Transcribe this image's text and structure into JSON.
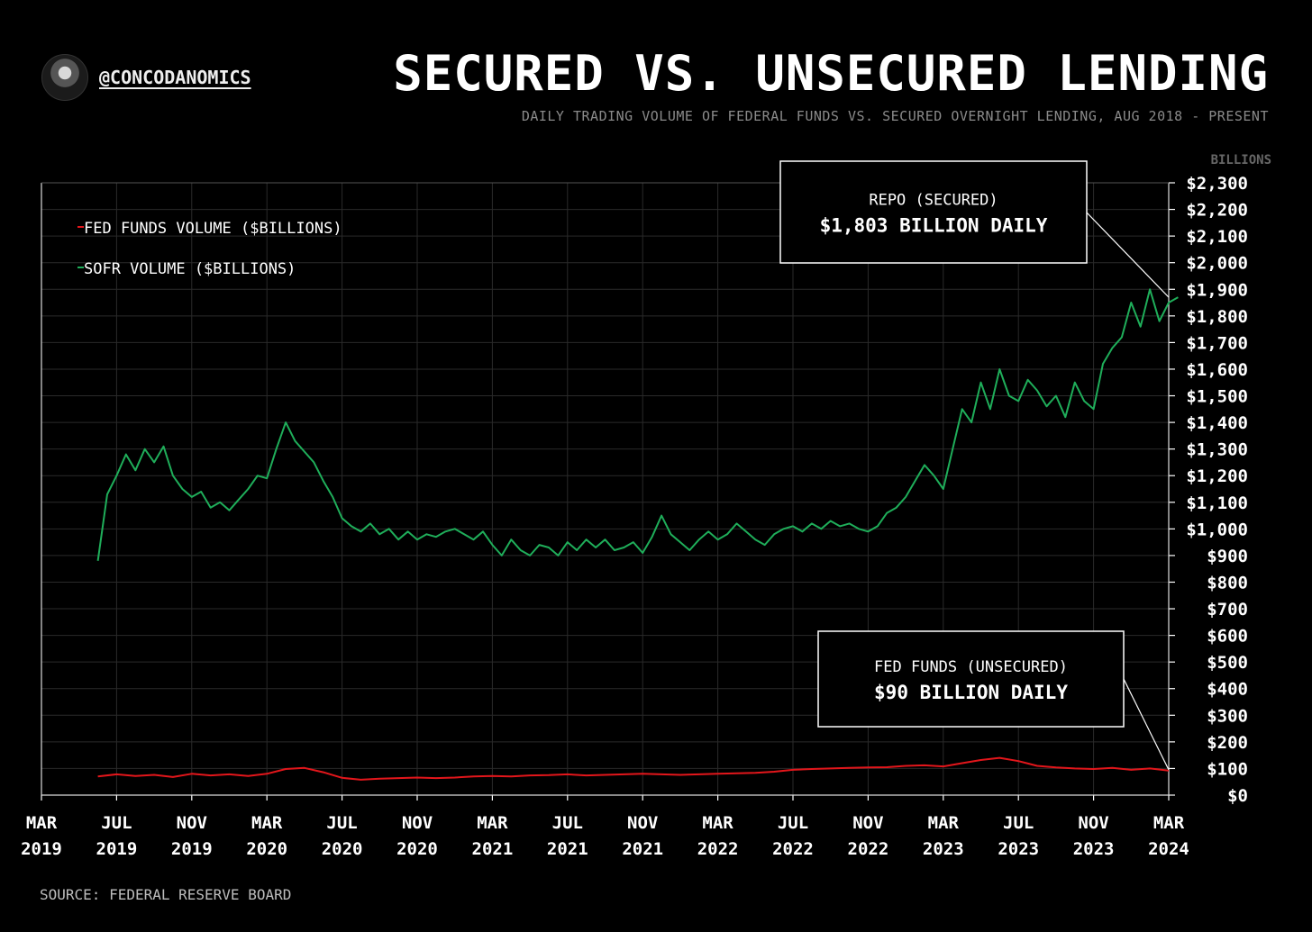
{
  "header": {
    "handle": "@CONCODANOMICS",
    "title": "SECURED VS. UNSECURED LENDING",
    "subtitle": "DAILY TRADING VOLUME OF FEDERAL FUNDS VS. SECURED OVERNIGHT LENDING, AUG 2018 - PRESENT"
  },
  "footer": {
    "source": "SOURCE: FEDERAL RESERVE BOARD"
  },
  "colors": {
    "background": "#000000",
    "grid": "#2a2a2a",
    "fed_funds": "#e3161b",
    "sofr": "#1fae5a",
    "text": "#ffffff"
  },
  "annotations": [
    {
      "label": "REPO (SECURED)",
      "value": "$1,803 BILLION DAILY",
      "target_x": "2024-03",
      "target_y": 1870
    },
    {
      "label": "FED FUNDS (UNSECURED)",
      "value": "$90 BILLION DAILY",
      "target_x": "2024-03",
      "target_y": 95
    }
  ],
  "chart_data": {
    "type": "line",
    "title": "SECURED VS. UNSECURED LENDING",
    "subtitle": "DAILY TRADING VOLUME OF FEDERAL FUNDS VS. SECURED OVERNIGHT LENDING, AUG 2018 - PRESENT",
    "y_unit_label": "BILLIONS",
    "ylim": [
      0,
      2300
    ],
    "y_ticks": [
      0,
      100,
      200,
      300,
      400,
      500,
      600,
      700,
      800,
      900,
      1000,
      1100,
      1200,
      1300,
      1400,
      1500,
      1600,
      1700,
      1800,
      1900,
      2000,
      2100,
      2200,
      2300
    ],
    "y_tick_labels": [
      "$0",
      "$100",
      "$200",
      "$300",
      "$400",
      "$500",
      "$600",
      "$700",
      "$800",
      "$900",
      "$1,000",
      "$1,100",
      "$1,200",
      "$1,300",
      "$1,400",
      "$1,500",
      "$1,600",
      "$1,700",
      "$1,800",
      "$1,900",
      "$2,000",
      "$2,100",
      "$2,200",
      "$2,300"
    ],
    "xlim": [
      "2019-03",
      "2024-03"
    ],
    "x_ticks": [
      "2019-03",
      "2019-07",
      "2019-11",
      "2020-03",
      "2020-07",
      "2020-11",
      "2021-03",
      "2021-07",
      "2021-11",
      "2022-03",
      "2022-07",
      "2022-11",
      "2023-03",
      "2023-07",
      "2023-11",
      "2024-03"
    ],
    "x_tick_labels": [
      [
        "MAR",
        "2019"
      ],
      [
        "JUL",
        "2019"
      ],
      [
        "NOV",
        "2019"
      ],
      [
        "MAR",
        "2020"
      ],
      [
        "JUL",
        "2020"
      ],
      [
        "NOV",
        "2020"
      ],
      [
        "MAR",
        "2021"
      ],
      [
        "JUL",
        "2021"
      ],
      [
        "NOV",
        "2021"
      ],
      [
        "MAR",
        "2022"
      ],
      [
        "JUL",
        "2022"
      ],
      [
        "NOV",
        "2022"
      ],
      [
        "MAR",
        "2023"
      ],
      [
        "JUL",
        "2023"
      ],
      [
        "NOV",
        "2023"
      ],
      [
        "MAR",
        "2024"
      ]
    ],
    "grid": true,
    "legend_position": "top-left",
    "series": [
      {
        "name": "FED FUNDS VOLUME ($BILLIONS)",
        "color": "#e3161b",
        "points": [
          [
            "2019-06",
            70
          ],
          [
            "2019-07",
            78
          ],
          [
            "2019-08",
            72
          ],
          [
            "2019-09",
            76
          ],
          [
            "2019-10",
            68
          ],
          [
            "2019-11",
            80
          ],
          [
            "2019-12",
            74
          ],
          [
            "2020-01",
            78
          ],
          [
            "2020-02",
            72
          ],
          [
            "2020-03",
            80
          ],
          [
            "2020-04",
            98
          ],
          [
            "2020-05",
            102
          ],
          [
            "2020-06",
            86
          ],
          [
            "2020-07",
            65
          ],
          [
            "2020-08",
            58
          ],
          [
            "2020-09",
            62
          ],
          [
            "2020-10",
            64
          ],
          [
            "2020-11",
            66
          ],
          [
            "2020-12",
            64
          ],
          [
            "2021-01",
            66
          ],
          [
            "2021-02",
            70
          ],
          [
            "2021-03",
            72
          ],
          [
            "2021-04",
            70
          ],
          [
            "2021-05",
            74
          ],
          [
            "2021-06",
            75
          ],
          [
            "2021-07",
            78
          ],
          [
            "2021-08",
            74
          ],
          [
            "2021-09",
            76
          ],
          [
            "2021-10",
            78
          ],
          [
            "2021-11",
            80
          ],
          [
            "2021-12",
            78
          ],
          [
            "2022-01",
            76
          ],
          [
            "2022-02",
            78
          ],
          [
            "2022-03",
            80
          ],
          [
            "2022-04",
            82
          ],
          [
            "2022-05",
            84
          ],
          [
            "2022-06",
            88
          ],
          [
            "2022-07",
            95
          ],
          [
            "2022-08",
            98
          ],
          [
            "2022-09",
            100
          ],
          [
            "2022-10",
            102
          ],
          [
            "2022-11",
            104
          ],
          [
            "2022-12",
            105
          ],
          [
            "2023-01",
            110
          ],
          [
            "2023-02",
            112
          ],
          [
            "2023-03",
            108
          ],
          [
            "2023-04",
            120
          ],
          [
            "2023-05",
            132
          ],
          [
            "2023-06",
            140
          ],
          [
            "2023-07",
            128
          ],
          [
            "2023-08",
            110
          ],
          [
            "2023-09",
            104
          ],
          [
            "2023-10",
            100
          ],
          [
            "2023-11",
            98
          ],
          [
            "2023-12",
            102
          ],
          [
            "2024-01",
            95
          ],
          [
            "2024-02",
            100
          ],
          [
            "2024-03",
            92
          ]
        ]
      },
      {
        "name": "SOFR VOLUME ($BILLIONS)",
        "color": "#1fae5a",
        "points": [
          [
            "2019-06",
            880
          ],
          [
            "2019-06",
            1130
          ],
          [
            "2019-07",
            1200
          ],
          [
            "2019-07",
            1280
          ],
          [
            "2019-08",
            1220
          ],
          [
            "2019-08",
            1300
          ],
          [
            "2019-09",
            1250
          ],
          [
            "2019-09",
            1310
          ],
          [
            "2019-10",
            1200
          ],
          [
            "2019-10",
            1150
          ],
          [
            "2019-11",
            1120
          ],
          [
            "2019-11",
            1140
          ],
          [
            "2019-12",
            1080
          ],
          [
            "2019-12",
            1100
          ],
          [
            "2020-01",
            1070
          ],
          [
            "2020-01",
            1110
          ],
          [
            "2020-02",
            1150
          ],
          [
            "2020-02",
            1200
          ],
          [
            "2020-03",
            1190
          ],
          [
            "2020-03",
            1300
          ],
          [
            "2020-04",
            1400
          ],
          [
            "2020-04",
            1330
          ],
          [
            "2020-05",
            1290
          ],
          [
            "2020-05",
            1250
          ],
          [
            "2020-06",
            1180
          ],
          [
            "2020-06",
            1120
          ],
          [
            "2020-07",
            1040
          ],
          [
            "2020-07",
            1010
          ],
          [
            "2020-08",
            990
          ],
          [
            "2020-08",
            1020
          ],
          [
            "2020-09",
            980
          ],
          [
            "2020-09",
            1000
          ],
          [
            "2020-10",
            960
          ],
          [
            "2020-10",
            990
          ],
          [
            "2020-11",
            960
          ],
          [
            "2020-11",
            980
          ],
          [
            "2020-12",
            970
          ],
          [
            "2020-12",
            990
          ],
          [
            "2021-01",
            1000
          ],
          [
            "2021-01",
            980
          ],
          [
            "2021-02",
            960
          ],
          [
            "2021-02",
            990
          ],
          [
            "2021-03",
            940
          ],
          [
            "2021-03",
            900
          ],
          [
            "2021-04",
            960
          ],
          [
            "2021-04",
            920
          ],
          [
            "2021-05",
            900
          ],
          [
            "2021-05",
            940
          ],
          [
            "2021-06",
            930
          ],
          [
            "2021-06",
            900
          ],
          [
            "2021-07",
            950
          ],
          [
            "2021-07",
            920
          ],
          [
            "2021-08",
            960
          ],
          [
            "2021-08",
            930
          ],
          [
            "2021-09",
            960
          ],
          [
            "2021-09",
            920
          ],
          [
            "2021-10",
            930
          ],
          [
            "2021-10",
            950
          ],
          [
            "2021-11",
            910
          ],
          [
            "2021-11",
            970
          ],
          [
            "2021-12",
            1050
          ],
          [
            "2021-12",
            980
          ],
          [
            "2022-01",
            950
          ],
          [
            "2022-01",
            920
          ],
          [
            "2022-02",
            960
          ],
          [
            "2022-02",
            990
          ],
          [
            "2022-03",
            960
          ],
          [
            "2022-03",
            980
          ],
          [
            "2022-04",
            1020
          ],
          [
            "2022-04",
            990
          ],
          [
            "2022-05",
            960
          ],
          [
            "2022-05",
            940
          ],
          [
            "2022-06",
            980
          ],
          [
            "2022-06",
            1000
          ],
          [
            "2022-07",
            1010
          ],
          [
            "2022-07",
            990
          ],
          [
            "2022-08",
            1020
          ],
          [
            "2022-08",
            1000
          ],
          [
            "2022-09",
            1030
          ],
          [
            "2022-09",
            1010
          ],
          [
            "2022-10",
            1020
          ],
          [
            "2022-10",
            1000
          ],
          [
            "2022-11",
            990
          ],
          [
            "2022-11",
            1010
          ],
          [
            "2022-12",
            1060
          ],
          [
            "2022-12",
            1080
          ],
          [
            "2023-01",
            1120
          ],
          [
            "2023-01",
            1180
          ],
          [
            "2023-02",
            1240
          ],
          [
            "2023-02",
            1200
          ],
          [
            "2023-03",
            1150
          ],
          [
            "2023-03",
            1300
          ],
          [
            "2023-04",
            1450
          ],
          [
            "2023-04",
            1400
          ],
          [
            "2023-05",
            1550
          ],
          [
            "2023-05",
            1450
          ],
          [
            "2023-06",
            1600
          ],
          [
            "2023-06",
            1500
          ],
          [
            "2023-07",
            1480
          ],
          [
            "2023-07",
            1560
          ],
          [
            "2023-08",
            1520
          ],
          [
            "2023-08",
            1460
          ],
          [
            "2023-09",
            1500
          ],
          [
            "2023-09",
            1420
          ],
          [
            "2023-10",
            1550
          ],
          [
            "2023-10",
            1480
          ],
          [
            "2023-11",
            1450
          ],
          [
            "2023-11",
            1620
          ],
          [
            "2023-12",
            1680
          ],
          [
            "2023-12",
            1720
          ],
          [
            "2024-01",
            1850
          ],
          [
            "2024-01",
            1760
          ],
          [
            "2024-02",
            1900
          ],
          [
            "2024-02",
            1780
          ],
          [
            "2024-03",
            1850
          ],
          [
            "2024-03",
            1870
          ]
        ]
      }
    ]
  }
}
